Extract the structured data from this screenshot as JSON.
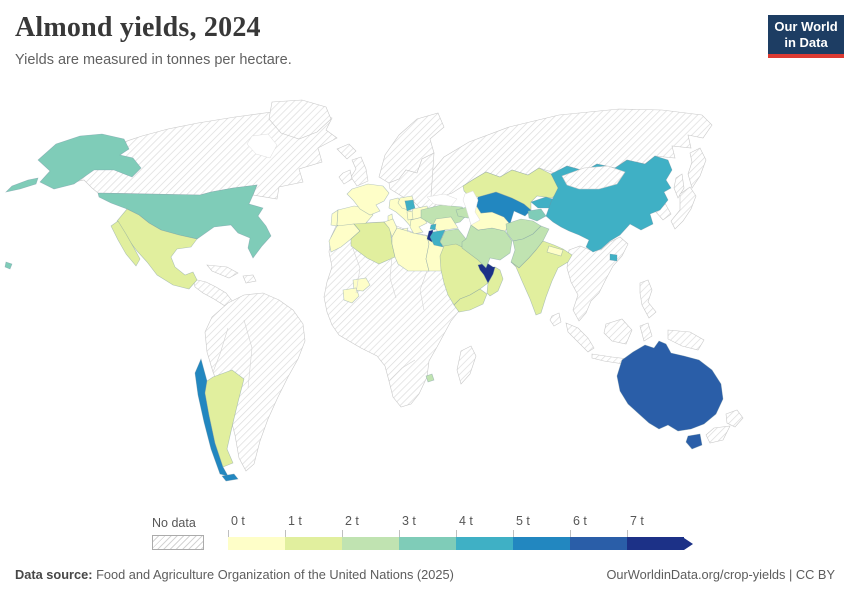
{
  "header": {
    "title": "Almond yields, 2024",
    "subtitle": "Yields are measured in tonnes per hectare.",
    "logo_line1": "Our World",
    "logo_line2": "in Data",
    "logo_bg": "#1d3d63",
    "logo_accent": "#dc3a32"
  },
  "legend": {
    "nodata_label": "No data",
    "bins": [
      {
        "label": "0 t",
        "color": "#fefec8"
      },
      {
        "label": "1 t",
        "color": "#e1ef9e"
      },
      {
        "label": "2 t",
        "color": "#c0e3b1"
      },
      {
        "label": "3 t",
        "color": "#7fccb8"
      },
      {
        "label": "4 t",
        "color": "#3fb0c5"
      },
      {
        "label": "5 t",
        "color": "#2287c0"
      },
      {
        "label": "6 t",
        "color": "#2a5ea8"
      },
      {
        "label": "7 t",
        "color": "#1c3187"
      }
    ]
  },
  "chart_data": {
    "type": "choropleth_map",
    "title": "Almond yields, 2024",
    "unit": "tonnes per hectare",
    "bin_labels": [
      "0-1 t",
      "1-2 t",
      "2-3 t",
      "3-4 t",
      "4-5 t",
      "5-6 t",
      "6-7 t",
      "7+ t"
    ],
    "bin_colors": [
      "#fefec8",
      "#e1ef9e",
      "#c0e3b1",
      "#7fccb8",
      "#3fb0c5",
      "#2287c0",
      "#2a5ea8",
      "#1c3187"
    ],
    "countries": {
      "United States": 3,
      "Mexico": 1,
      "Chile": 5,
      "Argentina": 1,
      "Spain": 0,
      "Portugal": 0,
      "France": 0,
      "Italy": 0,
      "Croatia": 0,
      "Bosnia and Herzegovina": 4,
      "Albania": 0,
      "Bulgaria": 0,
      "Greece": 0,
      "Turkey": 2,
      "Morocco": 0,
      "Algeria": 1,
      "Tunisia": 0,
      "Libya": 0,
      "Egypt": 0,
      "Burkina Faso": 0,
      "Guinea": 0,
      "Eswatini": 2,
      "Syria": 0,
      "Lebanon": 4,
      "Israel": 7,
      "Jordan": 4,
      "Iraq": 2,
      "Saudi Arabia": 1,
      "Yemen": 1,
      "Oman": 1,
      "United Arab Emirates": 7,
      "Iran": 2,
      "Azerbaijan": 2,
      "Turkmenistan": 0,
      "Uzbekistan": 5,
      "Kazakhstan": 1,
      "Kyrgyzstan": 4,
      "Tajikistan": 3,
      "Afghanistan": 2,
      "Pakistan": 2,
      "India": 1,
      "Nepal": 0,
      "China": 4,
      "Australia": 6
    },
    "no_data_note": "Hatched regions (Canada, Russia, Brazil, most of Sub-Saharan Africa, Southeast Asia, Japan, New Zealand, etc.) have no data."
  },
  "footer": {
    "datasource_label": "Data source:",
    "datasource_text": " Food and Agriculture Organization of the United Nations (2025)",
    "right_text": "OurWorldinData.org/crop-yields | CC BY"
  }
}
